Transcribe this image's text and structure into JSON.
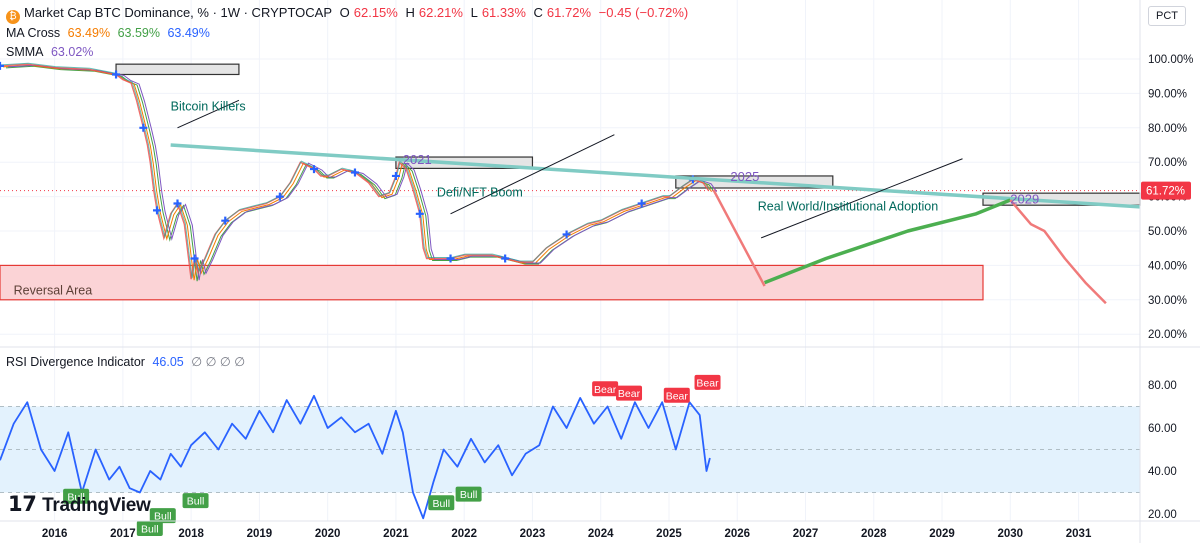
{
  "header": {
    "symbol_title": "Market Cap BTC Dominance, % · 1W · CRYPTOCAP",
    "ohlc": {
      "open_label": "O",
      "open": "62.15%",
      "high_label": "H",
      "high": "62.21%",
      "low_label": "L",
      "low": "61.33%",
      "close_label": "C",
      "close": "61.72%",
      "change": "−0.45 (−0.72%)"
    },
    "ma_cross": {
      "label": "MA Cross",
      "v1": "63.49%",
      "v2": "63.59%",
      "v3": "63.49%"
    },
    "smma": {
      "label": "SMMA",
      "value": "63.02%"
    },
    "pct_button": "PCT",
    "logo_text": "TradingView"
  },
  "colors": {
    "price_green": "#26a69a",
    "price_red": "#ef5350",
    "ma_orange": "#f57c00",
    "ma_green": "#43a047",
    "ma_blue": "#2962ff",
    "smma_purple": "#7e57c2",
    "trendline": "#80cbc4",
    "reversal_fill": "#fbd3d6",
    "reversal_border": "#e53935",
    "projection_red": "#f07a7a",
    "projection_green": "#4caf50",
    "rsi_line": "#2962ff",
    "rsi_band": "#e3f2fd"
  },
  "chart_data": [
    {
      "type": "line",
      "title": "",
      "x_axis": {
        "tick_labels": [
          "2016",
          "2017",
          "2018",
          "2019",
          "2020",
          "2021",
          "2022",
          "2023",
          "2024",
          "2025",
          "2026",
          "2027",
          "2028",
          "2029",
          "2030",
          "2031"
        ],
        "range": [
          2015.2,
          2031.9
        ]
      },
      "y_axis": {
        "tick_labels": [
          "100.00%",
          "90.00%",
          "80.00%",
          "70.00%",
          "60.00%",
          "50.00%",
          "40.00%",
          "30.00%",
          "20.00%"
        ],
        "range": [
          15,
          105
        ],
        "unit": "%"
      },
      "current_price_label": "61.72%",
      "series": [
        {
          "x": [
            2015.2,
            2015.6,
            2016.0,
            2016.5,
            2016.9,
            2017.0,
            2017.12,
            2017.2,
            2017.3,
            2017.36,
            2017.4,
            2017.45,
            2017.5,
            2017.55,
            2017.6,
            2017.7,
            2017.8,
            2017.9,
            2017.95,
            2018.0,
            2018.05,
            2018.1,
            2018.2,
            2018.35,
            2018.5,
            2018.7,
            2018.9,
            2019.1,
            2019.3,
            2019.45,
            2019.6,
            2019.7,
            2019.8,
            2019.9,
            2020.0,
            2020.2,
            2020.4,
            2020.6,
            2020.75,
            2020.9,
            2021.0,
            2021.05,
            2021.15,
            2021.25,
            2021.35,
            2021.4,
            2021.45,
            2021.6,
            2021.8,
            2022.0,
            2022.2,
            2022.4,
            2022.6,
            2022.8,
            2023.0,
            2023.2,
            2023.5,
            2023.8,
            2024.0,
            2024.3,
            2024.6,
            2024.9,
            2025.0,
            2025.2,
            2025.35,
            2025.5,
            2025.58
          ],
          "values": [
            98,
            98.5,
            97.5,
            97,
            95.5,
            94,
            93,
            88,
            80,
            75,
            70,
            62,
            56,
            52,
            48,
            55,
            58,
            52,
            44,
            36,
            42,
            38,
            42,
            49,
            53,
            56,
            57,
            58,
            60,
            64,
            70,
            69,
            68,
            66,
            66,
            68,
            67,
            64,
            60,
            61,
            66,
            70,
            68,
            62,
            55,
            45,
            42,
            42,
            42,
            43,
            43,
            43,
            42,
            41,
            41,
            45,
            49,
            52,
            53,
            56,
            58,
            60,
            60,
            63,
            65,
            64,
            61.72
          ],
          "note": "approximate weekly price path"
        }
      ],
      "annotations": [
        {
          "text": "Bitcoin Killers",
          "x": 2017.7,
          "y": 85
        },
        {
          "text": "Defi/NFT Boom",
          "x": 2021.6,
          "y": 60
        },
        {
          "text": "Real World/Institutional Adoption",
          "x": 2026.3,
          "y": 56
        },
        {
          "text": "2021",
          "x": 2021.1,
          "y": 69.5
        },
        {
          "text": "2025",
          "x": 2025.9,
          "y": 64.5
        },
        {
          "text": "2029",
          "x": 2030.0,
          "y": 58
        },
        {
          "text": "Reversal Area",
          "x": 2015.4,
          "y": 31.5
        }
      ],
      "projections": [
        {
          "name_shown": "",
          "x": [
            2025.65,
            2026.4
          ],
          "values": [
            62,
            34
          ]
        },
        {
          "name_shown": "",
          "x": [
            2026.4,
            2027.3,
            2028.5,
            2029.5,
            2030.0
          ],
          "values": [
            35,
            42,
            50,
            55,
            59
          ]
        },
        {
          "name_shown": "",
          "x": [
            2030.0,
            2030.3,
            2030.5,
            2030.8,
            2031.1,
            2031.4
          ],
          "values": [
            59,
            52,
            50,
            42,
            35,
            29
          ]
        }
      ],
      "trendline": {
        "x": [
          2017.7,
          2031.9
        ],
        "values": [
          75,
          57
        ]
      },
      "zones": [
        {
          "x": [
            2015.2,
            2029.6
          ],
          "values": [
            30,
            40
          ]
        },
        {
          "x": [
            2016.9,
            2018.7
          ],
          "values": [
            95.5,
            98.5
          ]
        },
        {
          "x": [
            2021.0,
            2023.0
          ],
          "values": [
            68.2,
            71.5
          ]
        },
        {
          "x": [
            2025.1,
            2027.4
          ],
          "values": [
            62.5,
            66
          ]
        },
        {
          "x": [
            2029.6,
            2031.9
          ],
          "values": [
            57.5,
            61
          ]
        }
      ]
    },
    {
      "type": "line",
      "title": "",
      "legend": {
        "label": "RSI Divergence Indicator",
        "value": "46.05",
        "extras": "∅ ∅ ∅ ∅"
      },
      "y_axis": {
        "tick_labels": [
          "80.00",
          "60.00",
          "40.00",
          "20.00"
        ],
        "range": [
          10,
          85
        ],
        "band": [
          30,
          70
        ]
      },
      "series": [
        {
          "x": [
            2015.2,
            2015.4,
            2015.6,
            2015.8,
            2016.0,
            2016.2,
            2016.4,
            2016.6,
            2016.8,
            2016.95,
            2017.1,
            2017.25,
            2017.4,
            2017.55,
            2017.7,
            2017.85,
            2018.0,
            2018.2,
            2018.4,
            2018.6,
            2018.8,
            2019.0,
            2019.2,
            2019.4,
            2019.6,
            2019.8,
            2020.0,
            2020.2,
            2020.4,
            2020.6,
            2020.8,
            2021.0,
            2021.1,
            2021.25,
            2021.4,
            2021.55,
            2021.7,
            2021.9,
            2022.1,
            2022.3,
            2022.5,
            2022.7,
            2022.9,
            2023.1,
            2023.3,
            2023.5,
            2023.7,
            2023.9,
            2024.1,
            2024.3,
            2024.5,
            2024.7,
            2024.9,
            2025.1,
            2025.3,
            2025.45,
            2025.55,
            2025.6
          ],
          "values": [
            45,
            62,
            72,
            50,
            40,
            58,
            30,
            50,
            36,
            42,
            32,
            30,
            40,
            36,
            48,
            42,
            52,
            58,
            50,
            62,
            55,
            68,
            58,
            73,
            62,
            75,
            60,
            65,
            58,
            62,
            48,
            68,
            58,
            30,
            18,
            35,
            50,
            42,
            55,
            44,
            52,
            38,
            48,
            52,
            70,
            60,
            74,
            62,
            70,
            55,
            72,
            60,
            72,
            50,
            72,
            66,
            40,
            46.05
          ],
          "note": "approximate"
        }
      ],
      "markers": [
        {
          "text": "Bull",
          "x": 2016.3,
          "y": 28
        },
        {
          "text": "Bull",
          "x": 2017.38,
          "y": 13
        },
        {
          "text": "Bull",
          "x": 2017.57,
          "y": 19
        },
        {
          "text": "Bull",
          "x": 2018.05,
          "y": 26
        },
        {
          "text": "Bull",
          "x": 2021.65,
          "y": 25
        },
        {
          "text": "Bull",
          "x": 2022.05,
          "y": 29
        },
        {
          "text": "Bear",
          "x": 2024.05,
          "y": 78
        },
        {
          "text": "Bear",
          "x": 2024.4,
          "y": 76
        },
        {
          "text": "Bear",
          "x": 2025.1,
          "y": 75
        },
        {
          "text": "Bear",
          "x": 2025.55,
          "y": 81
        }
      ]
    }
  ]
}
